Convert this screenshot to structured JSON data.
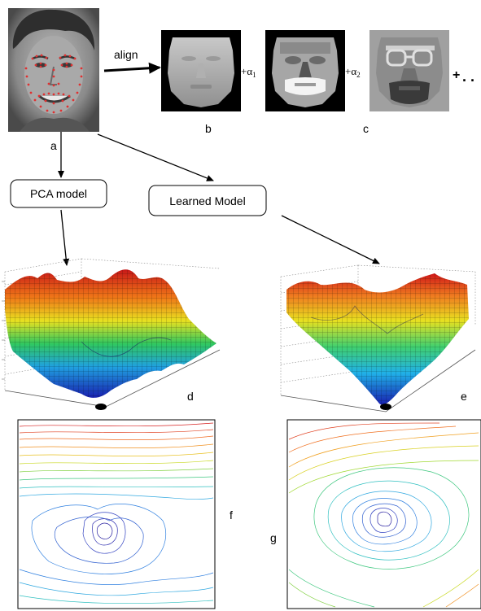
{
  "labels": {
    "a": "a",
    "b": "b",
    "c": "c",
    "d": "d",
    "e": "e",
    "f": "f",
    "g": "g"
  },
  "align_text": "align",
  "terms": {
    "alpha1": "+α",
    "alpha1_sub": "1",
    "alpha2": "+α",
    "alpha2_sub": "2",
    "plus_more": "+",
    "ellipsis": ". ."
  },
  "boxes": {
    "pca": "PCA model",
    "learned": "Learned Model"
  },
  "colors": {
    "landmark": "#e03030",
    "surface_high": "#d62020",
    "surface_low": "#1020b0",
    "arrow": "#000000"
  }
}
